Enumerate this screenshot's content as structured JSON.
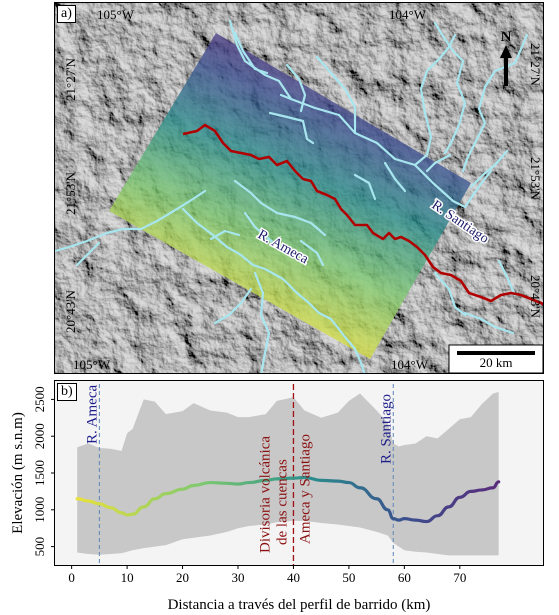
{
  "map": {
    "panel_label": "a)",
    "top_lon_labels": [
      "105°W",
      "104°W"
    ],
    "bottom_lon_labels": [
      "105°W",
      "104°W"
    ],
    "left_lat_labels": [
      "21°27'N",
      "21°53'N",
      "20°43'N"
    ],
    "right_lat_labels": [
      "21°27'N",
      "21°53'N",
      "20°43'N"
    ],
    "north_label": "N",
    "scale_label": "20 km",
    "river_labels": [
      "R. Santiago",
      "R. Ameca"
    ],
    "colors": {
      "river": "#a8e6ef",
      "divide": "#b00000",
      "ramp": [
        "#e8e23a",
        "#7cc870",
        "#2a8e8c",
        "#3b4f8f",
        "#5a2c7c"
      ]
    }
  },
  "profile": {
    "panel_label": "b)",
    "xlabel": "Distancia a través del perfil de barrido (km)",
    "ylabel": "Elevación (m s.n.m)",
    "x_ticks": [
      "0",
      "10",
      "20",
      "30",
      "40",
      "50",
      "60",
      "70"
    ],
    "y_ticks": [
      "500",
      "1000",
      "1500",
      "2000",
      "2500"
    ],
    "annotations": {
      "ameca": "R. Ameca",
      "santiago": "R. Santiago",
      "divide_lines": [
        "Divisoria volcánica",
        "de las cuencas",
        "Ameca y Santiago"
      ]
    }
  },
  "chart_data": {
    "type": "area",
    "xlabel": "Distancia a través del perfil de barrido (km)",
    "ylabel": "Elevación (m s.n.m)",
    "xlim": [
      -3,
      85
    ],
    "ylim": [
      250,
      2750
    ],
    "x": [
      1,
      3,
      5,
      7,
      9,
      10,
      11,
      13,
      15,
      17,
      20,
      22,
      25,
      28,
      30,
      32,
      35,
      37,
      40,
      42,
      45,
      48,
      50,
      52,
      55,
      57,
      58,
      59,
      60,
      62,
      64,
      66,
      68,
      70,
      72,
      74,
      76,
      77
    ],
    "mean": [
      1150,
      1120,
      1080,
      1030,
      960,
      930,
      940,
      1040,
      1150,
      1220,
      1280,
      1330,
      1370,
      1360,
      1350,
      1370,
      1400,
      1420,
      1430,
      1440,
      1400,
      1390,
      1370,
      1300,
      1150,
      1000,
      880,
      860,
      880,
      860,
      840,
      920,
      1040,
      1170,
      1250,
      1270,
      1300,
      1380
    ],
    "max": [
      1850,
      1900,
      1840,
      1830,
      1800,
      2040,
      2100,
      2500,
      2470,
      2300,
      2340,
      2450,
      2350,
      2320,
      2260,
      2260,
      2300,
      2480,
      2530,
      2350,
      2250,
      2320,
      2480,
      2580,
      2350,
      2180,
      1900,
      1860,
      1880,
      1900,
      2000,
      1970,
      2100,
      2230,
      2260,
      2440,
      2580,
      2600
    ],
    "min": [
      420,
      400,
      390,
      400,
      410,
      430,
      450,
      480,
      500,
      520,
      600,
      620,
      650,
      700,
      750,
      780,
      800,
      830,
      850,
      850,
      820,
      800,
      780,
      760,
      700,
      650,
      550,
      500,
      450,
      430,
      420,
      400,
      380,
      380,
      380,
      380,
      380,
      380
    ],
    "annotations": [
      {
        "text": "R. Ameca",
        "x": 5
      },
      {
        "text": "R. Santiago",
        "x": 58
      },
      {
        "text": "Divisoria volcánica de las cuencas Ameca y Santiago",
        "x": 40
      }
    ]
  }
}
